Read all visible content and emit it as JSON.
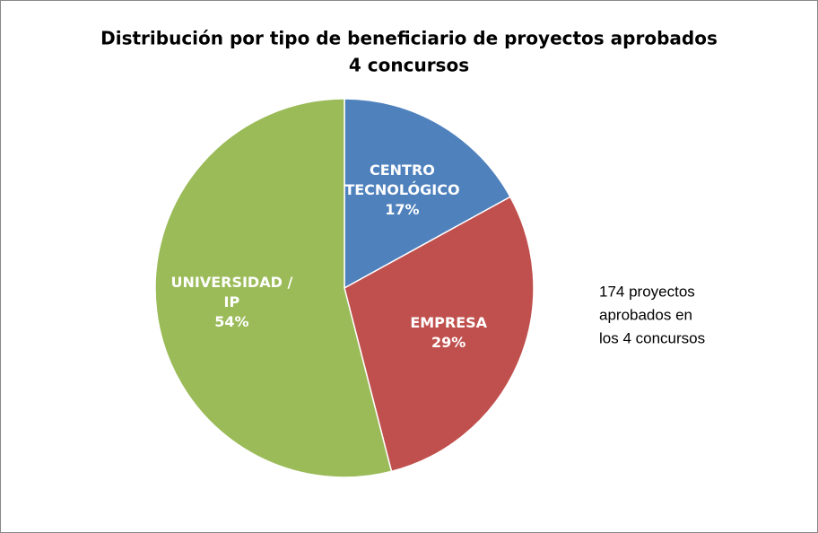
{
  "chart_data": {
    "type": "pie",
    "title": [
      "Distribución por tipo de beneficiario de proyectos aprobados",
      "4 concursos"
    ],
    "categories": [
      "CENTRO TECNOLÓGICO",
      "EMPRESA",
      "UNIVERSIDAD / IP"
    ],
    "values": [
      17,
      29,
      54
    ],
    "value_labels": [
      "17%",
      "29%",
      "54%"
    ],
    "colors": [
      "#4f81bd",
      "#c0504d",
      "#9bbb59"
    ],
    "annotation": [
      "174 proyectos",
      "aprobados en",
      "los 4 concursos"
    ]
  }
}
